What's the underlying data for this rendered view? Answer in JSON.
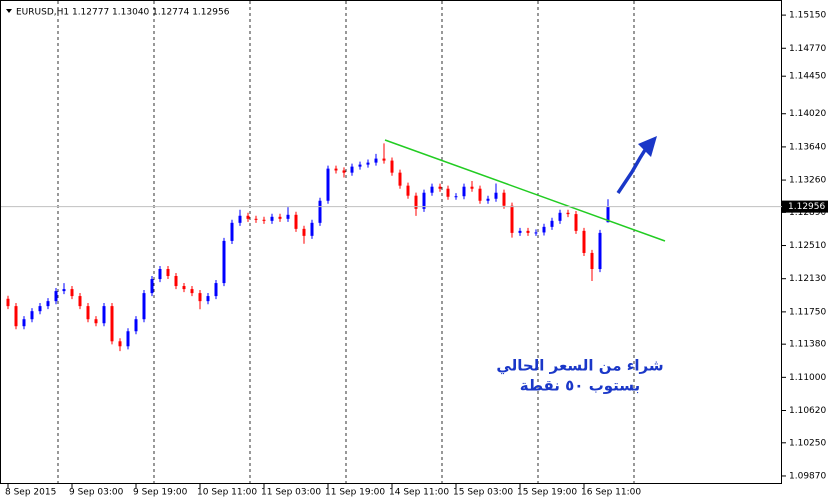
{
  "chart_data": {
    "type": "candlestick",
    "header": "EURUSD,H1  1.12777 1.13040 1.12774 1.12956",
    "annotations": [
      "شراء من السعر الحالي",
      "بستوب ٥٠ نقطة"
    ],
    "categories": [
      "8 Sep 2015",
      null,
      null,
      null,
      null,
      null,
      null,
      null,
      "9 Sep 03:00",
      null,
      null,
      null,
      null,
      null,
      null,
      null,
      "9 Sep 19:00",
      null,
      null,
      null,
      null,
      null,
      null,
      null,
      "10 Sep 11:00",
      null,
      null,
      null,
      null,
      null,
      null,
      null,
      "11 Sep 03:00",
      null,
      null,
      null,
      null,
      null,
      null,
      null,
      "11 Sep 19:00",
      null,
      null,
      null,
      null,
      null,
      null,
      null,
      "14 Sep 11:00",
      null,
      null,
      null,
      null,
      null,
      null,
      null,
      "15 Sep 03:00",
      null,
      null,
      null,
      null,
      null,
      null,
      null,
      "15 Sep 19:00",
      null,
      null,
      null,
      null,
      null,
      null,
      null,
      "16 Sep 11:00",
      null,
      null,
      null
    ],
    "open": [
      1.119,
      1.11816,
      1.11586,
      1.11666,
      1.11758,
      1.11816,
      1.11873,
      1.11988,
      1.12011,
      1.11931,
      1.11816,
      1.11666,
      1.1162,
      1.11816,
      1.11413,
      1.11356,
      1.11528,
      1.11666,
      1.11965,
      1.12126,
      1.12241,
      1.12161,
      1.12046,
      1.12011,
      1.11965,
      1.11873,
      1.11931,
      1.1208,
      1.12563,
      1.1277,
      1.12851,
      1.12816,
      1.12805,
      1.12793,
      1.12839,
      1.12816,
      1.12862,
      1.12701,
      1.12621,
      1.1277,
      1.13023,
      1.13391,
      1.1337,
      1.13345,
      1.13414,
      1.13437,
      1.1346,
      1.13506,
      1.13483,
      1.13345,
      1.13196,
      1.13081,
      1.12931,
      1.13115,
      1.13184,
      1.13161,
      1.13069,
      1.13075,
      1.13184,
      1.13161,
      1.13023,
      1.13046,
      1.13115,
      1.12966,
      1.12655,
      1.12678,
      1.12655,
      1.1266,
      1.12724,
      1.12793,
      1.12885,
      1.1287,
      1.12678,
      1.12425,
      1.12241,
      1.12777
    ],
    "high": [
      1.11935,
      1.11851,
      1.11701,
      1.11793,
      1.11851,
      1.11908,
      1.12023,
      1.1208,
      1.12046,
      1.11966,
      1.11851,
      1.11701,
      1.11851,
      1.11851,
      1.11448,
      1.11563,
      1.11701,
      1.12,
      1.12161,
      1.12276,
      1.12276,
      1.12196,
      1.12081,
      1.12046,
      1.12,
      1.11966,
      1.12115,
      1.12598,
      1.12805,
      1.1292,
      1.12886,
      1.12851,
      1.1284,
      1.12874,
      1.12874,
      1.1295,
      1.12897,
      1.12736,
      1.12805,
      1.13058,
      1.13426,
      1.13426,
      1.13405,
      1.13449,
      1.13472,
      1.13495,
      1.1356,
      1.1368,
      1.13518,
      1.1338,
      1.13231,
      1.13116,
      1.1315,
      1.13219,
      1.13219,
      1.13196,
      1.1311,
      1.13219,
      1.1325,
      1.13196,
      1.13081,
      1.1322,
      1.1315,
      1.13001,
      1.12713,
      1.12713,
      1.12695,
      1.12759,
      1.12828,
      1.1292,
      1.1292,
      1.12905,
      1.12713,
      1.1246,
      1.1269,
      1.1304
    ],
    "low": [
      1.11781,
      1.11551,
      1.11551,
      1.11631,
      1.11723,
      1.11781,
      1.11838,
      1.11953,
      1.11896,
      1.11781,
      1.11631,
      1.11585,
      1.11585,
      1.11378,
      1.113,
      1.11321,
      1.11493,
      1.11631,
      1.1193,
      1.12091,
      1.12126,
      1.12011,
      1.11976,
      1.1193,
      1.1178,
      1.11838,
      1.11896,
      1.12045,
      1.12528,
      1.12735,
      1.12781,
      1.1277,
      1.12758,
      1.12758,
      1.12781,
      1.12781,
      1.12666,
      1.1253,
      1.12586,
      1.12735,
      1.12988,
      1.13335,
      1.1329,
      1.1331,
      1.13379,
      1.13402,
      1.13425,
      1.13448,
      1.1331,
      1.13161,
      1.13046,
      1.1285,
      1.12896,
      1.1308,
      1.13126,
      1.13034,
      1.13034,
      1.1304,
      1.13126,
      1.12988,
      1.12988,
      1.13011,
      1.12931,
      1.126,
      1.1262,
      1.1262,
      1.1262,
      1.12625,
      1.12689,
      1.12758,
      1.12835,
      1.12643,
      1.1239,
      1.12103,
      1.12206,
      1.12774
    ],
    "close": [
      1.11816,
      1.11586,
      1.11666,
      1.11758,
      1.11816,
      1.11873,
      1.11988,
      1.12011,
      1.11931,
      1.11816,
      1.11666,
      1.1162,
      1.11816,
      1.11413,
      1.11356,
      1.11528,
      1.11666,
      1.11965,
      1.12126,
      1.12241,
      1.12161,
      1.12046,
      1.12011,
      1.11965,
      1.11873,
      1.11931,
      1.1208,
      1.12563,
      1.1277,
      1.12851,
      1.12816,
      1.12805,
      1.12793,
      1.12839,
      1.12816,
      1.12862,
      1.12701,
      1.12621,
      1.1277,
      1.13023,
      1.13391,
      1.1337,
      1.13345,
      1.13414,
      1.13437,
      1.1346,
      1.13506,
      1.13483,
      1.13345,
      1.13196,
      1.13081,
      1.12931,
      1.13115,
      1.13184,
      1.13161,
      1.13069,
      1.13075,
      1.13184,
      1.13161,
      1.13023,
      1.13046,
      1.13115,
      1.12966,
      1.12655,
      1.12678,
      1.12655,
      1.1266,
      1.12724,
      1.12793,
      1.12885,
      1.1287,
      1.12678,
      1.12425,
      1.12241,
      1.12655,
      1.12956
    ],
    "up_color": "#0000ff",
    "down_color": "#ff0000",
    "ylim": [
      1.09778,
      1.15323
    ],
    "yticks": [
      {
        "value": 1.1515,
        "label": "1.15150"
      },
      {
        "value": 1.1477,
        "label": "1.14770"
      },
      {
        "value": 1.1445,
        "label": "1.14450"
      },
      {
        "value": 1.1402,
        "label": "1.14020"
      },
      {
        "value": 1.1364,
        "label": "1.13640"
      },
      {
        "value": 1.1326,
        "label": "1.13260"
      },
      {
        "value": 1.1289,
        "label": "1.12890"
      },
      {
        "value": 1.1251,
        "label": "1.12510"
      },
      {
        "value": 1.1213,
        "label": "1.12130"
      },
      {
        "value": 1.1175,
        "label": "1.11750"
      },
      {
        "value": 1.1138,
        "label": "1.11380"
      },
      {
        "value": 1.11,
        "label": "1.11000"
      },
      {
        "value": 1.1062,
        "label": "1.10620"
      },
      {
        "value": 1.1025,
        "label": "1.10250"
      },
      {
        "value": 1.0987,
        "label": "1.09870"
      }
    ]
  }
}
